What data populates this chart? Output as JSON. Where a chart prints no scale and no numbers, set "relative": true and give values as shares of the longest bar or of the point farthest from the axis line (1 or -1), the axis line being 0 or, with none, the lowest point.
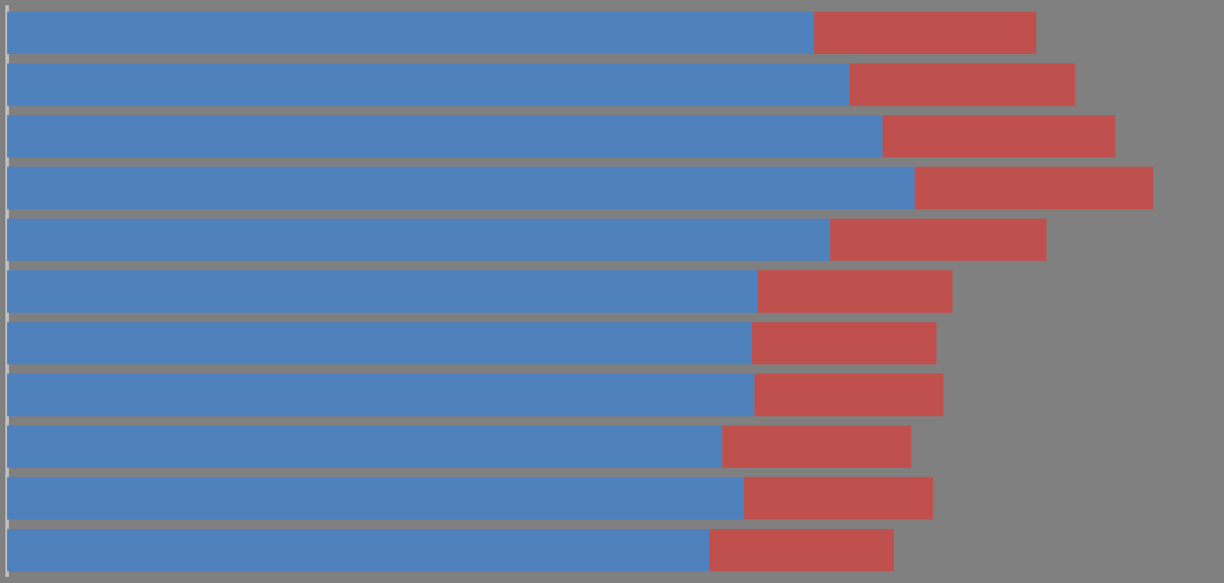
{
  "chart_data": {
    "type": "bar",
    "orientation": "horizontal",
    "stacked": true,
    "relative": true,
    "categories": [
      null,
      null,
      null,
      null,
      null,
      null,
      null,
      null,
      null,
      null,
      null
    ],
    "series": [
      {
        "color": "#4f81bd",
        "values": [
          0.704,
          0.735,
          0.764,
          0.792,
          0.718,
          0.655,
          0.65,
          0.652,
          0.624,
          0.643,
          0.613
        ]
      },
      {
        "color": "#c0504d",
        "values": [
          0.194,
          0.197,
          0.203,
          0.208,
          0.189,
          0.17,
          0.161,
          0.165,
          0.165,
          0.165,
          0.161
        ]
      }
    ]
  }
}
